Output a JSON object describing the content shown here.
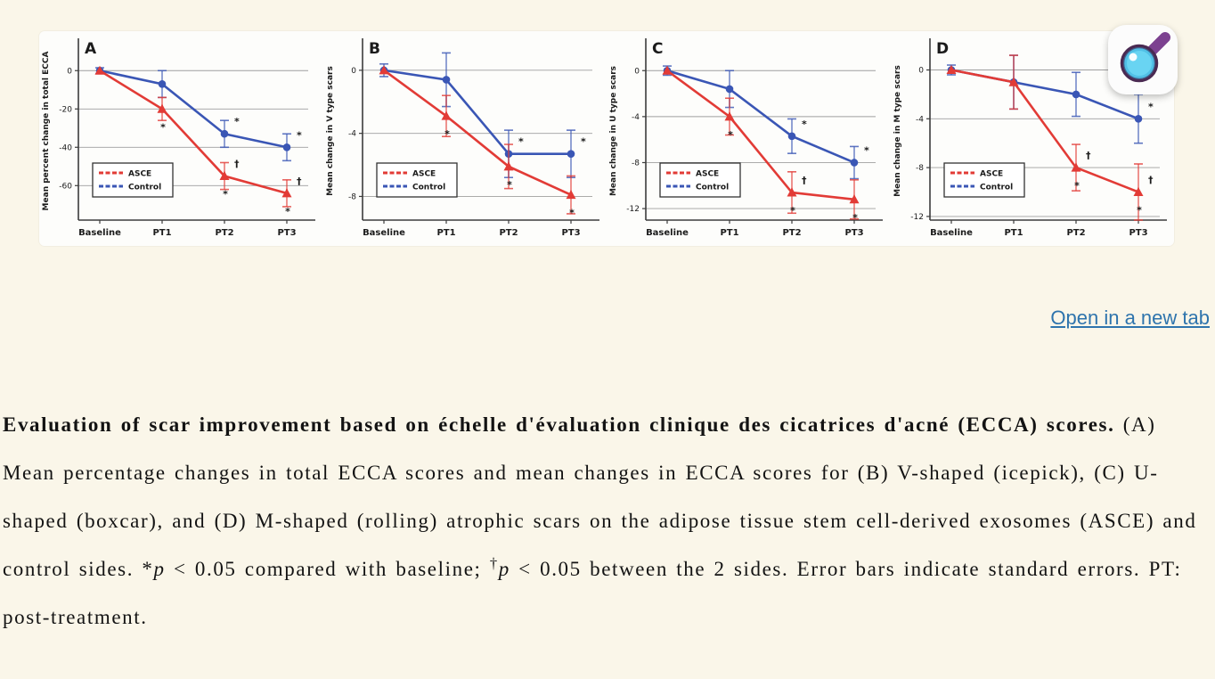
{
  "colors": {
    "page_bg": "#faf6e9",
    "ascE_red": "#e23b36",
    "control_blue": "#3a56b5",
    "grid": "#9f9f9f",
    "axis": "#3c3c3c",
    "link_blue": "#2e74ad"
  },
  "link": {
    "label": "Open in a new tab"
  },
  "zoom_badge": {
    "icon": "magnifier-icon"
  },
  "chart_data": {
    "type": "line",
    "categories": [
      "Baseline",
      "PT1",
      "PT2",
      "PT3"
    ],
    "legend_position": "lower-left",
    "legend_entries": [
      "ASCE",
      "Control"
    ],
    "annotation_symbols": {
      "vs_baseline": "*",
      "between_sides": "†"
    },
    "panels": [
      {
        "letter": "A",
        "ylabel": "Mean percent change in total ECCA",
        "ylim": [
          -78,
          15
        ],
        "yticks": [
          0,
          -20,
          -40,
          -60
        ],
        "series": [
          {
            "name": "ASCE",
            "color": "#e23b36",
            "marker": "triangle",
            "values": [
              0,
              -20,
              -55,
              -64
            ],
            "errors": [
              0,
              6,
              7,
              7
            ],
            "ann_below": [
              "",
              "*",
              "*",
              "*"
            ],
            "ann_above": [
              "",
              "",
              "†",
              "†"
            ]
          },
          {
            "name": "Control",
            "color": "#3a56b5",
            "marker": "circle",
            "values": [
              0,
              -7,
              -33,
              -40
            ],
            "errors": [
              1.5,
              7,
              7,
              7
            ],
            "ann_below": [
              "",
              "",
              "",
              ""
            ],
            "ann_above": [
              "",
              "",
              "*",
              "*"
            ]
          }
        ]
      },
      {
        "letter": "B",
        "ylabel": "Mean change in V type scars",
        "ylim": [
          -9.5,
          1.8
        ],
        "yticks": [
          0,
          -4,
          -8
        ],
        "series": [
          {
            "name": "ASCE",
            "color": "#e23b36",
            "marker": "triangle",
            "values": [
              0,
              -2.9,
              -6.1,
              -7.9
            ],
            "errors": [
              0,
              1.3,
              1.4,
              1.2
            ],
            "ann_below": [
              "",
              "*",
              "*",
              "*"
            ],
            "ann_above": [
              "",
              "",
              "",
              ""
            ]
          },
          {
            "name": "Control",
            "color": "#3a56b5",
            "marker": "circle",
            "values": [
              0,
              -0.6,
              -5.3,
              -5.3
            ],
            "errors": [
              0.4,
              1.7,
              1.5,
              1.5
            ],
            "ann_below": [
              "",
              "",
              "",
              ""
            ],
            "ann_above": [
              "",
              "",
              "*",
              "*"
            ]
          }
        ]
      },
      {
        "letter": "C",
        "ylabel": "Mean change in U type scars",
        "ylim": [
          -13,
          2.5
        ],
        "yticks": [
          0,
          -4,
          -8,
          -12
        ],
        "series": [
          {
            "name": "ASCE",
            "color": "#e23b36",
            "marker": "triangle",
            "values": [
              0,
              -4,
              -10.6,
              -11.2
            ],
            "errors": [
              0,
              1.6,
              1.8,
              1.7
            ],
            "ann_below": [
              "",
              "*",
              "*",
              "*"
            ],
            "ann_above": [
              "",
              "",
              "†",
              ""
            ]
          },
          {
            "name": "Control",
            "color": "#3a56b5",
            "marker": "circle",
            "values": [
              0,
              -1.6,
              -5.7,
              -8
            ],
            "errors": [
              0.4,
              1.6,
              1.5,
              1.4
            ],
            "ann_below": [
              "",
              "",
              "",
              ""
            ],
            "ann_above": [
              "",
              "",
              "*",
              "*"
            ]
          }
        ]
      },
      {
        "letter": "D",
        "ylabel": "Mean change in M type scars",
        "ylim": [
          -12.3,
          2.3
        ],
        "yticks": [
          0,
          -4,
          -8,
          -12
        ],
        "series": [
          {
            "name": "ASCE",
            "color": "#e23b36",
            "marker": "triangle",
            "values": [
              0,
              -1,
              -8,
              -10
            ],
            "errors": [
              0,
              2.2,
              1.9,
              2.3
            ],
            "ann_below": [
              "",
              "",
              "*",
              "*"
            ],
            "ann_above": [
              "",
              "",
              "†",
              "†"
            ]
          },
          {
            "name": "Control",
            "color": "#3a56b5",
            "marker": "circle",
            "values": [
              0,
              -1,
              -2,
              -4
            ],
            "errors": [
              0.4,
              2.2,
              1.8,
              2
            ],
            "ann_below": [
              "",
              "",
              "",
              ""
            ],
            "ann_above": [
              "",
              "",
              "",
              "*"
            ]
          }
        ]
      }
    ]
  },
  "caption": {
    "parts": [
      {
        "t": "Evaluation of scar improvement based on échelle d'évaluation clinique des cicatrices d'acné (ECCA) scores.",
        "b": 1
      },
      {
        "t": " (A) Mean percentage changes in total ECCA scores and mean changes in ECCA scores for (B) V-shaped (icepick), (C) U-shaped (boxcar), and (D) M-shaped (rolling) atrophic scars on the adipose tissue stem cell-derived exosomes (ASCE) and control sides. *"
      },
      {
        "t": "p",
        "i": 1
      },
      {
        "t": " < 0.05 compared with baseline; "
      },
      {
        "t": "†",
        "sup": 1
      },
      {
        "t": "p",
        "i": 1
      },
      {
        "t": " < 0.05 between the 2 sides. Error bars indicate standard errors. PT: post-treatment."
      }
    ]
  }
}
